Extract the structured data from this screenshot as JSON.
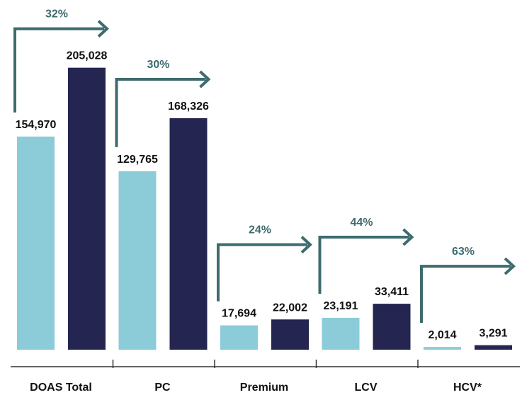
{
  "chart_data": {
    "type": "bar",
    "categories": [
      "DOAS Total",
      "PC",
      "Premium",
      "LCV",
      "HCV*"
    ],
    "series": [
      {
        "values": [
          154970,
          129765,
          17694,
          23191,
          2014
        ]
      },
      {
        "values": [
          205028,
          168326,
          22002,
          33411,
          3291
        ]
      }
    ],
    "value_labels": [
      [
        "154,970",
        "129,765",
        "17,694",
        "23,191",
        "2,014"
      ],
      [
        "205,028",
        "168,326",
        "22,002",
        "33,411",
        "3,291"
      ]
    ],
    "growth_labels": [
      "32%",
      "30%",
      "24%",
      "44%",
      "63%"
    ],
    "ylim": [
      0,
      210000
    ],
    "legend": "none",
    "grid": false,
    "colors": {
      "series_1": "#8ccbd8",
      "series_2": "#242551",
      "arrow": "#3d6b6e",
      "axis": "#333333"
    }
  }
}
